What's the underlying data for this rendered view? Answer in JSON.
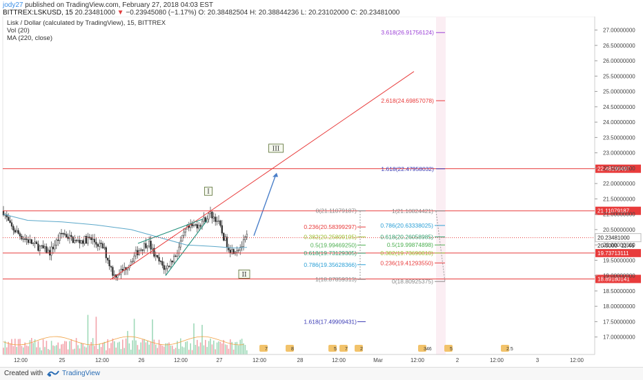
{
  "header": {
    "user": "jody27",
    "published": "published on TradingView.com, February 27, 2018 04:03 EST",
    "symbol": "BITTREX:LSKUSD, 15",
    "last": "20.23481000",
    "change": "−0.23945080 (−1.17%)",
    "ohlc": "O: 20.38482504  H: 20.38844236  L: 20.23102000  C: 20.23481000"
  },
  "legend": {
    "title": "Lisk / Dollar (calculated by TradingView), 15, BITTREX",
    "vol": "Vol (20)",
    "ma": "MA (220, close)"
  },
  "footer": {
    "created_with": "Created with",
    "brand": "TradingView"
  },
  "colors": {
    "up": "#53b987",
    "down": "#eb4d5c",
    "candle": "#333333",
    "hline": "#e83b3b",
    "ma": "#5aa7c9",
    "trend": "#e83b3b",
    "channel": "#1f8f7a",
    "arrow": "#4a7fc9",
    "fib_purple": "#9b3fd6",
    "fib_navy": "#3b3bb5"
  },
  "chart_data": {
    "type": "candlestick",
    "y_axis": {
      "range": [
        16.7,
        27.35
      ],
      "ticks": [
        "27.00000000",
        "26.50000000",
        "26.00000000",
        "25.50000000",
        "25.00000000",
        "24.50000000",
        "24.00000000",
        "23.50000000",
        "23.00000000",
        "22.50000000",
        "22.00000000",
        "21.50000000",
        "21.00000000",
        "20.50000000",
        "20.00000000",
        "19.50000000",
        "19.00000000",
        "18.50000000",
        "18.00000000",
        "17.50000000",
        "17.00000000"
      ],
      "tick_values": [
        27,
        26.5,
        26,
        25.5,
        25,
        24.5,
        24,
        23.5,
        23,
        22.5,
        22,
        21.5,
        21,
        20.5,
        20,
        19.5,
        19,
        18.5,
        18,
        17.5,
        17
      ]
    },
    "x_axis": {
      "labels": [
        "12:00",
        "25",
        "12:00",
        "26",
        "12:00",
        "27",
        "12:00",
        "28",
        "12:00",
        "Mar",
        "12:00",
        "2",
        "12:00",
        "3",
        "12:00"
      ],
      "positions": [
        30,
        90,
        148,
        205,
        262,
        318,
        376,
        435,
        491,
        548,
        605,
        663,
        720,
        779,
        836
      ]
    },
    "price_lines": [
      {
        "value": 22.48190497,
        "label": "22.48190497"
      },
      {
        "value": 21.11079187,
        "label": "21.11079187"
      },
      {
        "value": 19.73713111,
        "label": "19.73713111"
      },
      {
        "value": 18.89180141,
        "label": "18.89180141"
      }
    ],
    "last_price": {
      "value": 20.23481,
      "label": "20.23481000",
      "countdown_value": 20.0,
      "countdown_label": "20.0000",
      "countdown": "11:46"
    },
    "fib_extension": [
      {
        "value": 26.91756124,
        "label": "3.618(26.91756124)",
        "color": "#9b3fd6"
      },
      {
        "value": 24.69857078,
        "label": "2.618(24.69857078)",
        "color": "#e83b3b"
      },
      {
        "value": 22.47958032,
        "label": "1.618(22.47958032)",
        "color": "#3b3bb5"
      }
    ],
    "fib_retracement_left": [
      {
        "value": 21.11079187,
        "label": "0(21.11079187)",
        "color": "#888888"
      },
      {
        "value": 20.58399297,
        "label": "0.236(20.58399297)",
        "color": "#e83b3b"
      },
      {
        "value": 20.25809195,
        "label": "0.382(20.25809195)",
        "color": "#9bbf2e"
      },
      {
        "value": 19.9946925,
        "label": "0.5(19.99469250)",
        "color": "#4caf50"
      },
      {
        "value": 19.73129305,
        "label": "0.618(19.73129305)",
        "color": "#2e9e6b"
      },
      {
        "value": 19.35628366,
        "label": "0.786(19.35628366)",
        "color": "#2a9fd6"
      },
      {
        "value": 18.87859313,
        "label": "1(18.87859313)",
        "color": "#888888"
      },
      {
        "value": 17.49909431,
        "label": "1.618(17.49909431)",
        "color": "#3b3bb5"
      }
    ],
    "fib_retracement_right": [
      {
        "value": 21.10824421,
        "label": "1(21.10824421)",
        "color": "#888888"
      },
      {
        "value": 20.63338025,
        "label": "0.786(20.63338025)",
        "color": "#2a9fd6"
      },
      {
        "value": 20.26058985,
        "label": "0.618(20.26058985)",
        "color": "#2e9e6b"
      },
      {
        "value": 19.99874898,
        "label": "0.5(19.99874898)",
        "color": "#4caf50"
      },
      {
        "value": 19.7369081,
        "label": "0.382(19.73690810)",
        "color": "#9bbf2e"
      },
      {
        "value": 19.4129355,
        "label": "0.236(19.41293550)",
        "color": "#e83b3b"
      },
      {
        "value": 18.80925375,
        "label": "0(18.80925375)",
        "color": "#888888"
      }
    ],
    "wave_labels": [
      {
        "text": "I",
        "value": 21.75
      },
      {
        "text": "II",
        "value": 19.05
      },
      {
        "text": "III",
        "value": 23.15
      }
    ],
    "event_markers": [
      "7",
      "8",
      "5",
      "7",
      "2",
      "346",
      "5",
      "2.5"
    ]
  }
}
